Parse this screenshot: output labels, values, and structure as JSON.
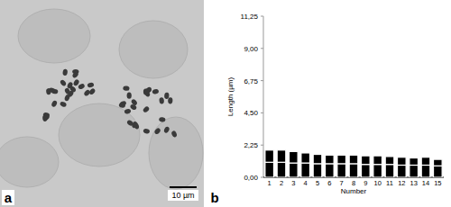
{
  "micrograph": {
    "label": "a",
    "scale_bar": "10 µm"
  },
  "chart_data": {
    "type": "bar",
    "stacked": true,
    "grid": false,
    "annotations": [
      "b"
    ],
    "x_label": "Number",
    "y_label": "Length (µm)",
    "categories": [
      "1",
      "2",
      "3",
      "4",
      "5",
      "6",
      "7",
      "8",
      "9",
      "10",
      "11",
      "12",
      "13",
      "14",
      "15"
    ],
    "series": [
      {
        "color": "#000000",
        "values": [
          1.05,
          1.05,
          1.0,
          1.0,
          0.95,
          0.95,
          0.95,
          0.95,
          0.9,
          0.9,
          0.9,
          0.85,
          0.85,
          0.85,
          0.8
        ]
      },
      {
        "color": "#000000",
        "values": [
          0.85,
          0.85,
          0.8,
          0.7,
          0.65,
          0.6,
          0.6,
          0.6,
          0.6,
          0.6,
          0.55,
          0.55,
          0.5,
          0.55,
          0.45
        ]
      }
    ],
    "ylim": [
      0,
      11.25
    ],
    "yticks": [
      {
        "value": 0,
        "label": "0,00"
      },
      {
        "value": 2.25,
        "label": "2,25"
      },
      {
        "value": 4.5,
        "label": "4,50"
      },
      {
        "value": 6.75,
        "label": "6,75"
      },
      {
        "value": 9,
        "label": "9,00"
      },
      {
        "value": 11.25,
        "label": "11,25"
      }
    ]
  }
}
